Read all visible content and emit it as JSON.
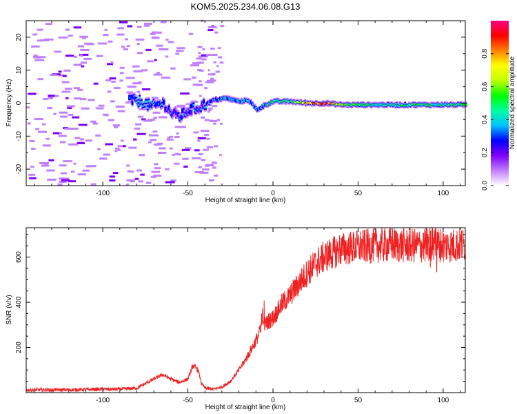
{
  "title": "KOM5.2025.234.06.08.G13",
  "chart_data": [
    {
      "type": "heatmap",
      "xlabel": "Height of straight line (km)",
      "ylabel": "Frequency (Hz)",
      "xlim": [
        -145,
        113
      ],
      "ylim": [
        -25,
        25
      ],
      "xticks": [
        -100,
        -50,
        0,
        50,
        100
      ],
      "yticks": [
        -20,
        -10,
        0,
        10,
        20
      ],
      "colorbar": {
        "label": "Normalized spectral amplitude",
        "range": [
          0,
          1
        ],
        "ticks": [
          0.0,
          0.2,
          0.4,
          0.6,
          0.8
        ],
        "colors": [
          "#ffffff",
          "#c080ff",
          "#8000ff",
          "#0000ff",
          "#00c0ff",
          "#00ffa0",
          "#00ff00",
          "#c0ff00",
          "#ffff00",
          "#ff8000",
          "#ff0000",
          "#ff0080"
        ]
      },
      "dominant_trace": [
        {
          "x": -85,
          "freq": 1.0,
          "amp": 0.3
        },
        {
          "x": -78,
          "freq": 0.5,
          "amp": 0.4
        },
        {
          "x": -72,
          "freq": -1.0,
          "amp": 0.35
        },
        {
          "x": -65,
          "freq": 0.0,
          "amp": 0.3
        },
        {
          "x": -60,
          "freq": -3.0,
          "amp": 0.25
        },
        {
          "x": -55,
          "freq": -4.0,
          "amp": 0.3
        },
        {
          "x": -50,
          "freq": -2.0,
          "amp": 0.3
        },
        {
          "x": -45,
          "freq": -1.5,
          "amp": 0.3
        },
        {
          "x": -35,
          "freq": 1.0,
          "amp": 0.35
        },
        {
          "x": -28,
          "freq": 1.5,
          "amp": 0.35
        },
        {
          "x": -20,
          "freq": 0.5,
          "amp": 0.35
        },
        {
          "x": -15,
          "freq": 1.0,
          "amp": 0.4
        },
        {
          "x": -10,
          "freq": -2.0,
          "amp": 0.35
        },
        {
          "x": -5,
          "freq": -0.5,
          "amp": 0.4
        },
        {
          "x": 0,
          "freq": 0.5,
          "amp": 0.45
        },
        {
          "x": 10,
          "freq": 0.5,
          "amp": 0.5
        },
        {
          "x": 20,
          "freq": 0.0,
          "amp": 0.75
        },
        {
          "x": 30,
          "freq": 0.0,
          "amp": 0.9
        },
        {
          "x": 40,
          "freq": -0.5,
          "amp": 0.55
        },
        {
          "x": 60,
          "freq": -0.5,
          "amp": 0.45
        },
        {
          "x": 80,
          "freq": -0.5,
          "amp": 0.45
        },
        {
          "x": 100,
          "freq": -0.5,
          "amp": 0.5
        },
        {
          "x": 113,
          "freq": -0.5,
          "amp": 0.45
        }
      ]
    },
    {
      "type": "line",
      "xlabel": "Height of straight line (km)",
      "ylabel": "SNR (v/v)",
      "xlim": [
        -145,
        113
      ],
      "ylim": [
        0,
        730
      ],
      "xticks": [
        -100,
        -50,
        0,
        50,
        100
      ],
      "yticks": [
        200,
        400,
        600
      ],
      "series": [
        {
          "name": "SNR",
          "color": "#ee2222",
          "x": [
            -145,
            -120,
            -100,
            -90,
            -80,
            -75,
            -70,
            -65,
            -60,
            -55,
            -50,
            -47,
            -44,
            -42,
            -40,
            -35,
            -30,
            -25,
            -20,
            -15,
            -10,
            -7,
            -5,
            -2,
            0,
            5,
            10,
            15,
            20,
            25,
            30,
            40,
            50,
            60,
            70,
            80,
            90,
            95,
            100,
            113
          ],
          "y": [
            12,
            12,
            15,
            15,
            20,
            40,
            60,
            80,
            60,
            45,
            60,
            120,
            100,
            40,
            20,
            15,
            25,
            50,
            100,
            160,
            230,
            280,
            300,
            320,
            330,
            390,
            430,
            480,
            530,
            570,
            600,
            635,
            645,
            650,
            655,
            650,
            650,
            660,
            650,
            655
          ]
        }
      ]
    }
  ]
}
